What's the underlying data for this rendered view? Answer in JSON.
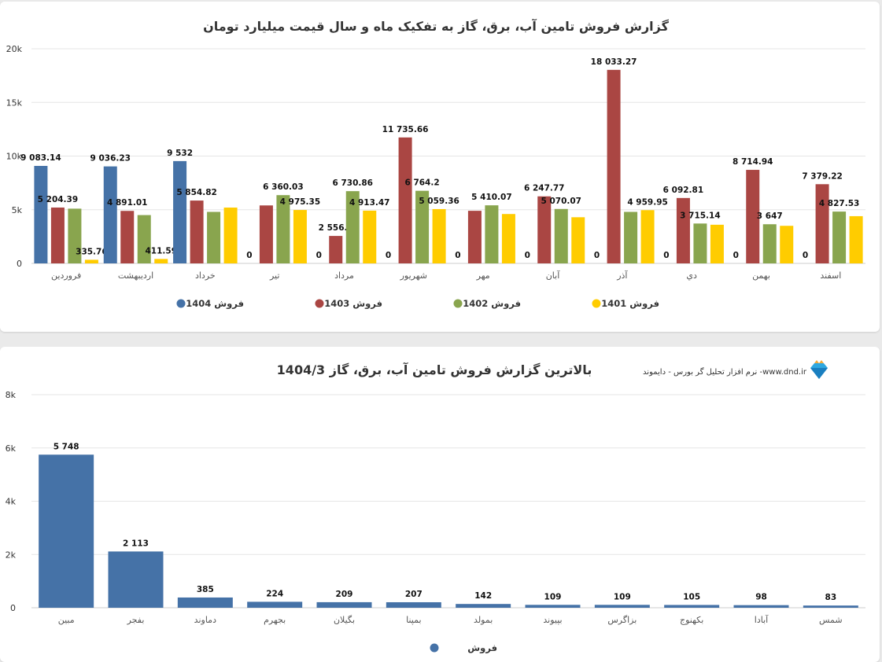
{
  "chart_data": [
    {
      "type": "bar",
      "title": "گزارش فروش تامین آب، برق، گاز به تفکیک ماه و سال قیمت میلیارد تومان",
      "categories": [
        "فروردین",
        "اردیبهشت",
        "خرداد",
        "تیر",
        "مرداد",
        "شهریور",
        "مهر",
        "آبان",
        "آذر",
        "دي",
        "بهمن",
        "اسفند"
      ],
      "ylim": [
        0,
        20000
      ],
      "yticks": [
        "0",
        "5k",
        "10k",
        "15k",
        "20k"
      ],
      "grid": true,
      "legend_position": "bottom",
      "series": [
        {
          "name": "فروش 1404",
          "color": "#4572a7",
          "values": [
            9083.14,
            9036.23,
            9532,
            0,
            0,
            0,
            0,
            0,
            0,
            0,
            0,
            0
          ],
          "labels": [
            "9 083.14",
            "9 036.23",
            "9 532",
            "0",
            "0",
            "0",
            "0",
            "0",
            "0",
            "0",
            "0",
            "0"
          ]
        },
        {
          "name": "فروش 1403",
          "color": "#aa4643",
          "values": [
            5204.39,
            4891.01,
            5854.82,
            5400,
            2556.8,
            11735.66,
            4900,
            6247.77,
            18033.27,
            6092.81,
            8714.94,
            7379.22
          ],
          "labels": [
            "5 204.39",
            "4 891.01",
            "5 854.82",
            "",
            "2 556.8",
            "11 735.66",
            "",
            "6 247.77",
            "18 033.27",
            "6 092.81",
            "8 714.94",
            "7 379.22"
          ]
        },
        {
          "name": "فروش 1402",
          "color": "#89a54e",
          "values": [
            5100,
            4500,
            4800,
            6360.03,
            6730.86,
            6764.2,
            5410.07,
            5070.07,
            4800,
            3715.14,
            3647,
            4827.53
          ],
          "labels": [
            "",
            "",
            "",
            "6 360.03",
            "6 730.86",
            "6 764.2",
            "5 410.07",
            "5 070.07",
            "",
            "3 715.14",
            "3 647",
            "4 827.53"
          ]
        },
        {
          "name": "فروش 1401",
          "color": "#ffcc00",
          "values": [
            335.76,
            411.59,
            5200,
            4975.35,
            4913.47,
            5059.36,
            4600,
            4300,
            4959.95,
            3600,
            3500,
            4400
          ],
          "labels": [
            "335.76",
            "411.59",
            "",
            "4 975.35",
            "4 913.47",
            "5 059.36",
            "",
            "",
            "4 959.95",
            "",
            "",
            ""
          ]
        }
      ]
    },
    {
      "type": "bar",
      "title": "بالاترین گزارش فروش تامین آب، برق، گاز 1404/3",
      "categories": [
        "مبین",
        "بفجر",
        "دماوند",
        "بجهرم",
        "بگیلان",
        "بمپنا",
        "بمولد",
        "بپیوند",
        "بزاگرس",
        "بکهنوج",
        "آبادا",
        "شمس"
      ],
      "ylim": [
        0,
        8000
      ],
      "yticks": [
        "0",
        "2k",
        "4k",
        "6k",
        "8k"
      ],
      "grid": true,
      "legend_position": "bottom",
      "series": [
        {
          "name": "فروش",
          "color": "#4572a7",
          "values": [
            5748,
            2113,
            385,
            224,
            209,
            207,
            142,
            109,
            109,
            105,
            98,
            83
          ],
          "labels": [
            "5 748",
            "2 113",
            "385",
            "224",
            "209",
            "207",
            "142",
            "109",
            "109",
            "105",
            "98",
            "83"
          ]
        }
      ]
    }
  ],
  "branding": {
    "text": "نرم افزار تحلیل گر بورس - دایموند -www.dnd.ir",
    "icon": "diamond-logo-icon"
  }
}
